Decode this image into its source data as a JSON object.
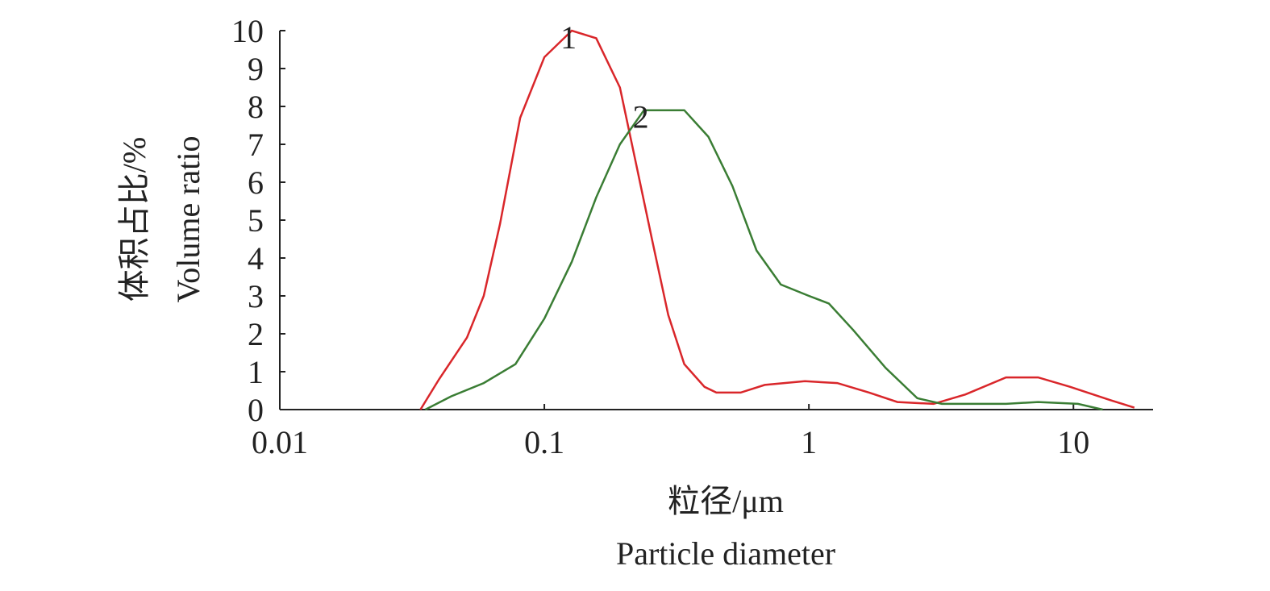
{
  "chart_data": {
    "type": "line",
    "xlabel": [
      "粒径/μm",
      "Particle diameter"
    ],
    "ylabel": [
      "体积占比/%",
      "Volume ratio"
    ],
    "xscale": "log",
    "xlim": [
      0.01,
      20
    ],
    "xticks": [
      0.01,
      0.1,
      1,
      10
    ],
    "ylim": [
      0,
      10
    ],
    "yticks": [
      0,
      1,
      2,
      3,
      4,
      5,
      6,
      7,
      8,
      9,
      10
    ],
    "series": [
      {
        "name": "1",
        "color": "#d9262a",
        "x": [
          0.034,
          0.04,
          0.051,
          0.059,
          0.068,
          0.081,
          0.1,
          0.127,
          0.157,
          0.193,
          0.222,
          0.255,
          0.294,
          0.338,
          0.403,
          0.447,
          0.552,
          0.681,
          0.966,
          1.28,
          1.69,
          2.16,
          2.96,
          3.91,
          5.56,
          7.35,
          9.72,
          13.8,
          17.0
        ],
        "values": [
          0,
          0.8,
          1.9,
          3.0,
          4.9,
          7.7,
          9.3,
          10.0,
          9.8,
          8.5,
          6.5,
          4.5,
          2.5,
          1.2,
          0.6,
          0.45,
          0.45,
          0.65,
          0.75,
          0.7,
          0.45,
          0.2,
          0.15,
          0.4,
          0.85,
          0.85,
          0.6,
          0.25,
          0.05
        ]
      },
      {
        "name": "2",
        "color": "#3a7d34",
        "x": [
          0.0355,
          0.0444,
          0.059,
          0.0778,
          0.1,
          0.127,
          0.157,
          0.193,
          0.238,
          0.338,
          0.417,
          0.514,
          0.634,
          0.783,
          1.0,
          1.19,
          1.47,
          1.95,
          2.57,
          3.18,
          5.56,
          7.35,
          10.4,
          12.9
        ],
        "values": [
          0,
          0.35,
          0.7,
          1.2,
          2.4,
          3.9,
          5.6,
          7.0,
          7.9,
          7.9,
          7.2,
          5.9,
          4.2,
          3.3,
          3.0,
          2.8,
          2.1,
          1.1,
          0.3,
          0.15,
          0.15,
          0.2,
          0.15,
          0
        ]
      }
    ]
  }
}
